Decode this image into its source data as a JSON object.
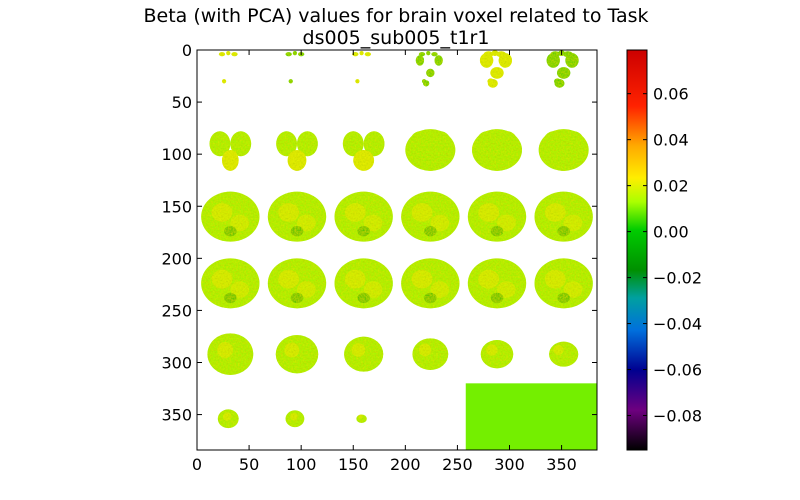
{
  "chart_data": {
    "type": "heatmap",
    "title": [
      "Beta (with PCA) values for brain voxel related to Task",
      "ds005_sub005_t1r1"
    ],
    "xlabel": "",
    "ylabel": "",
    "x_ticks": [
      "0",
      "50",
      "100",
      "150",
      "200",
      "250",
      "300",
      "350"
    ],
    "y_ticks": [
      "0",
      "50",
      "100",
      "150",
      "200",
      "250",
      "300",
      "350"
    ],
    "xlim": [
      0,
      384
    ],
    "ylim": [
      384,
      0
    ],
    "grid": false,
    "colorbar": {
      "colormap": "nipy_spectral",
      "range": [
        -0.095,
        0.079
      ],
      "tick_values": [
        0.06,
        0.04,
        0.02,
        0.0,
        -0.02,
        -0.04,
        -0.06,
        -0.08
      ],
      "tick_labels": [
        "0.06",
        "0.04",
        "0.02",
        "0.00",
        "−0.02",
        "−0.04",
        "−0.06",
        "−0.08"
      ]
    },
    "mosaic": {
      "tile_size": 64,
      "columns": 6,
      "rows": 6,
      "filled_slices": 33,
      "empty_fill_value": 0.0
    }
  }
}
